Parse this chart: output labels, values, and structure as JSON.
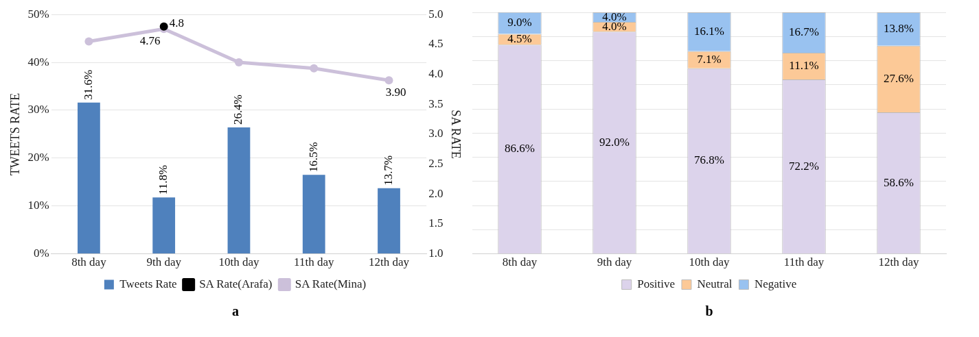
{
  "chart_data": [
    {
      "type": "bar",
      "title": "a",
      "ylabel": "TWEETS RATE",
      "y2label": "SA RATE",
      "categories": [
        "8th day",
        "9th day",
        "10th day",
        "11th day",
        "12th day"
      ],
      "series": [
        {
          "name": "Tweets Rate",
          "type": "bar",
          "color": "#4f81bd",
          "values": [
            31.6,
            11.8,
            26.4,
            16.5,
            13.7
          ],
          "value_labels": [
            "31.6%",
            "11.8%",
            "26.4%",
            "16.5%",
            "13.7%"
          ]
        },
        {
          "name": "SA Rate(Arafa)",
          "type": "line",
          "axis": "y2",
          "color": "#000000",
          "marker": "circle",
          "values": [
            null,
            4.8,
            null,
            null,
            null
          ],
          "value_labels": [
            null,
            "4.8",
            null,
            null,
            null
          ]
        },
        {
          "name": "SA Rate(Mina)",
          "type": "line",
          "axis": "y2",
          "color": "#ccc0da",
          "marker": "circle",
          "values": [
            4.55,
            4.76,
            4.2,
            4.1,
            3.9
          ],
          "value_labels": [
            null,
            "4.76",
            null,
            null,
            "3.90"
          ]
        }
      ],
      "ylim": [
        0,
        50
      ],
      "yticks": [
        {
          "value": 0,
          "label": "0%"
        },
        {
          "value": 10,
          "label": "10%"
        },
        {
          "value": 20,
          "label": "20%"
        },
        {
          "value": 30,
          "label": "30%"
        },
        {
          "value": 40,
          "label": "40%"
        },
        {
          "value": 50,
          "label": "50%"
        }
      ],
      "y2lim": [
        1,
        5
      ],
      "y2ticks": [
        {
          "value": 1,
          "label": "1.0"
        },
        {
          "value": 1.5,
          "label": "1.5"
        },
        {
          "value": 2,
          "label": "2.0"
        },
        {
          "value": 2.5,
          "label": "2.5"
        },
        {
          "value": 3,
          "label": "3.0"
        },
        {
          "value": 3.5,
          "label": "3.5"
        },
        {
          "value": 4,
          "label": "4.0"
        },
        {
          "value": 4.5,
          "label": "4.5"
        },
        {
          "value": 5,
          "label": "5.0"
        }
      ],
      "grid": "y",
      "legend": "bottom"
    },
    {
      "type": "bar",
      "title": "b",
      "stacked": true,
      "categories": [
        "8th day",
        "9th day",
        "10th day",
        "11th day",
        "12th day"
      ],
      "series": [
        {
          "name": "Positive",
          "color": "#dcd3eb",
          "values": [
            86.6,
            92.0,
            76.8,
            72.2,
            58.6
          ],
          "value_labels": [
            "86.6%",
            "92.0%",
            "76.8%",
            "72.2%",
            "58.6%"
          ]
        },
        {
          "name": "Neutral",
          "color": "#fcc997",
          "values": [
            4.5,
            4.0,
            7.1,
            11.1,
            27.6
          ],
          "value_labels": [
            "4.5%",
            "4.0%",
            "7.1%",
            "11.1%",
            "27.6%"
          ]
        },
        {
          "name": "Negative",
          "color": "#99c2f0",
          "values": [
            9.0,
            4.0,
            16.1,
            16.7,
            13.8
          ],
          "value_labels": [
            "9.0%",
            "4.0%",
            "16.1%",
            "16.7%",
            "13.8%"
          ]
        }
      ],
      "ylim": [
        0,
        100
      ],
      "yticks": [
        {
          "value": 0,
          "label": null
        },
        {
          "value": 10,
          "label": null
        },
        {
          "value": 20,
          "label": null
        },
        {
          "value": 30,
          "label": null
        },
        {
          "value": 40,
          "label": null
        },
        {
          "value": 50,
          "label": null
        },
        {
          "value": 60,
          "label": null
        },
        {
          "value": 70,
          "label": null
        },
        {
          "value": 80,
          "label": null
        },
        {
          "value": 90,
          "label": null
        },
        {
          "value": 100,
          "label": null
        }
      ],
      "tick_labels": "x",
      "grid": "y",
      "legend": "bottom"
    }
  ]
}
